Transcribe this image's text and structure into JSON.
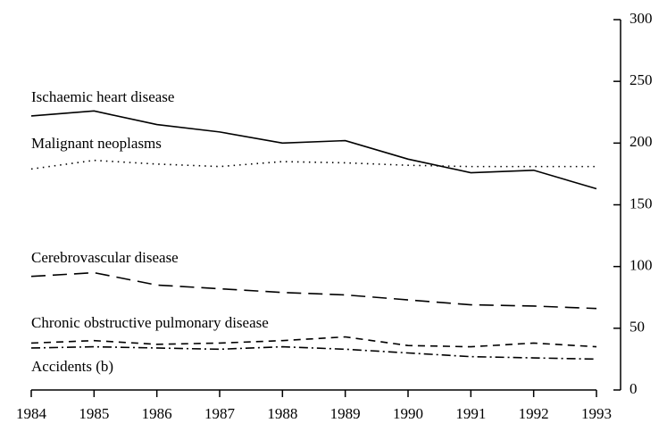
{
  "chart_data": {
    "type": "line",
    "x": [
      1984,
      1985,
      1986,
      1987,
      1988,
      1989,
      1990,
      1991,
      1992,
      1993
    ],
    "series": [
      {
        "name": "Ischaemic heart disease",
        "color": "#000000",
        "dash": "solid",
        "values": [
          222,
          226,
          215,
          209,
          200,
          202,
          187,
          176,
          178,
          163
        ]
      },
      {
        "name": "Malignant neoplasms",
        "color": "#000000",
        "dash": "dotted",
        "values": [
          179,
          186,
          183,
          181,
          185,
          184,
          182,
          181,
          181,
          181
        ]
      },
      {
        "name": "Cerebrovascular disease",
        "color": "#000000",
        "dash": "long-dashed",
        "values": [
          92,
          95,
          85,
          82,
          79,
          77,
          73,
          69,
          68,
          66
        ]
      },
      {
        "name": "Chronic obstructive pulmonary disease",
        "color": "#000000",
        "dash": "dashed",
        "values": [
          38,
          40,
          37,
          38,
          40,
          43,
          36,
          35,
          38,
          35
        ]
      },
      {
        "name": "Accidents (b)",
        "color": "#000000",
        "dash": "dash-dot",
        "values": [
          34,
          35,
          34,
          33,
          35,
          33,
          30,
          27,
          26,
          25
        ]
      }
    ],
    "xlim": [
      1984,
      1993
    ],
    "xticks": [
      1984,
      1985,
      1986,
      1987,
      1988,
      1989,
      1990,
      1991,
      1992,
      1993
    ],
    "ylim": [
      0,
      300
    ],
    "yticks": [
      0,
      50,
      100,
      150,
      200,
      250,
      300
    ],
    "y_axis_side": "right"
  }
}
